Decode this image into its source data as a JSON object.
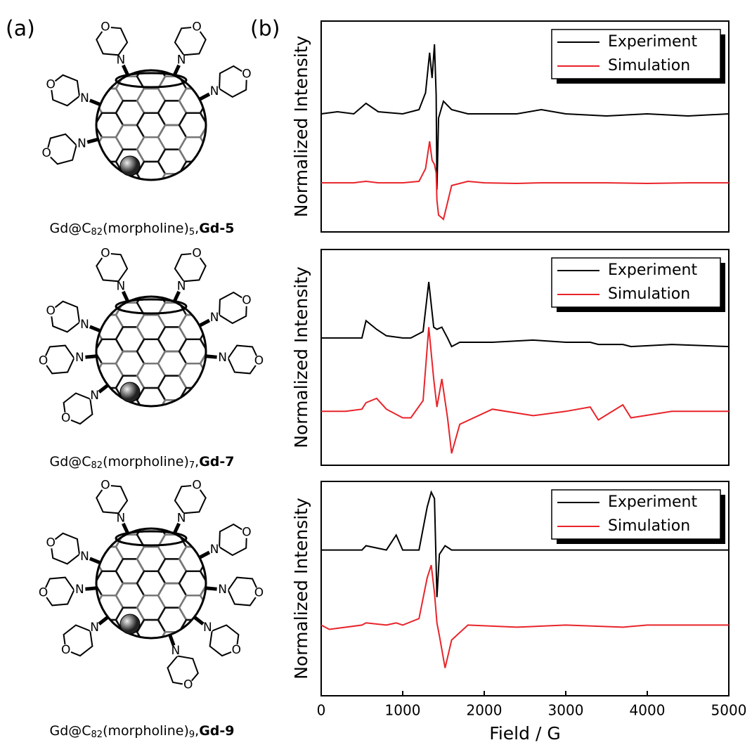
{
  "figure_labels": {
    "a": "(a)",
    "b": "(b)"
  },
  "atom_labels": {
    "nitrogen": "N",
    "oxygen": "O"
  },
  "compounds": [
    {
      "prefix": "Gd@C",
      "sub1": "82",
      "mid": "(morpholine)",
      "sub2": "5",
      "sep": ",",
      "bold": "Gd-5"
    },
    {
      "prefix": "Gd@C",
      "sub1": "82",
      "mid": "(morpholine)",
      "sub2": "7",
      "sep": ",",
      "bold": "Gd-7"
    },
    {
      "prefix": "Gd@C",
      "sub1": "82",
      "mid": "(morpholine)",
      "sub2": "9",
      "sep": ",",
      "bold": "Gd-9"
    }
  ],
  "chart_data": [
    {
      "type": "line",
      "ylabel": "Normalized Intensity",
      "xlim": [
        0,
        5000
      ],
      "ylim": [
        0,
        10
      ],
      "x": [
        0,
        200,
        400,
        550,
        700,
        1000,
        1200,
        1280,
        1330,
        1360,
        1390,
        1410,
        1420,
        1440,
        1500,
        1600,
        1800,
        2000,
        2400,
        2700,
        3000,
        3500,
        4000,
        4500,
        5000
      ],
      "series": [
        {
          "name": "Experiment",
          "color": "#000000",
          "values": [
            5.6,
            5.7,
            5.6,
            6.1,
            5.7,
            5.6,
            5.8,
            6.6,
            8.5,
            7.3,
            8.9,
            6.5,
            2.0,
            5.4,
            6.2,
            5.8,
            5.6,
            5.6,
            5.6,
            5.8,
            5.6,
            5.5,
            5.6,
            5.5,
            5.6
          ]
        },
        {
          "name": "Simulation",
          "color": "#e8242a",
          "values": [
            2.33,
            2.33,
            2.33,
            2.4,
            2.33,
            2.33,
            2.4,
            3.0,
            4.3,
            3.4,
            3.2,
            2.8,
            1.5,
            0.8,
            0.6,
            2.2,
            2.4,
            2.33,
            2.3,
            2.33,
            2.33,
            2.33,
            2.3,
            2.33,
            2.33
          ]
        }
      ]
    },
    {
      "type": "line",
      "ylabel": "Normalized Intensity",
      "xlim": [
        0,
        5000
      ],
      "ylim": [
        0,
        10
      ],
      "x": [
        0,
        300,
        500,
        550,
        680,
        800,
        1000,
        1100,
        1250,
        1320,
        1380,
        1420,
        1480,
        1550,
        1600,
        1700,
        2100,
        2600,
        3000,
        3300,
        3400,
        3700,
        3800,
        4300,
        5000
      ],
      "series": [
        {
          "name": "Experiment",
          "color": "#000000",
          "values": [
            5.9,
            5.9,
            5.9,
            6.7,
            6.3,
            6.0,
            5.9,
            5.9,
            6.2,
            8.5,
            6.4,
            6.3,
            6.4,
            5.9,
            5.5,
            5.7,
            5.7,
            5.8,
            5.7,
            5.7,
            5.6,
            5.6,
            5.5,
            5.6,
            5.5
          ]
        },
        {
          "name": "Simulation",
          "color": "#e8242a",
          "values": [
            2.5,
            2.5,
            2.6,
            2.9,
            3.1,
            2.6,
            2.2,
            2.2,
            3.0,
            6.4,
            4.0,
            2.7,
            4.0,
            2.2,
            0.55,
            1.9,
            2.6,
            2.3,
            2.5,
            2.7,
            2.1,
            2.8,
            2.2,
            2.5,
            2.5
          ]
        }
      ]
    },
    {
      "type": "line",
      "ylabel": "Normalized Intensity",
      "xlabel": "Field / G",
      "xlim": [
        0,
        5000
      ],
      "ylim": [
        0,
        10
      ],
      "xticks": [
        0,
        1000,
        2000,
        3000,
        4000,
        5000
      ],
      "x": [
        0,
        100,
        500,
        550,
        800,
        920,
        1000,
        1200,
        1300,
        1350,
        1390,
        1420,
        1450,
        1520,
        1600,
        1800,
        2400,
        3000,
        3700,
        4000,
        5000
      ],
      "series": [
        {
          "name": "Experiment",
          "color": "#000000",
          "values": [
            6.8,
            6.8,
            6.8,
            7.0,
            6.8,
            7.5,
            6.8,
            6.8,
            8.8,
            9.5,
            9.2,
            4.6,
            6.6,
            7.0,
            6.8,
            6.8,
            6.8,
            6.8,
            6.8,
            6.8,
            6.8
          ]
        },
        {
          "name": "Simulation",
          "color": "#e8242a",
          "values": [
            3.3,
            3.1,
            3.3,
            3.4,
            3.3,
            3.4,
            3.3,
            3.6,
            5.5,
            6.1,
            4.8,
            3.4,
            2.8,
            1.3,
            2.6,
            3.3,
            3.2,
            3.3,
            3.2,
            3.3,
            3.3
          ]
        }
      ]
    }
  ]
}
